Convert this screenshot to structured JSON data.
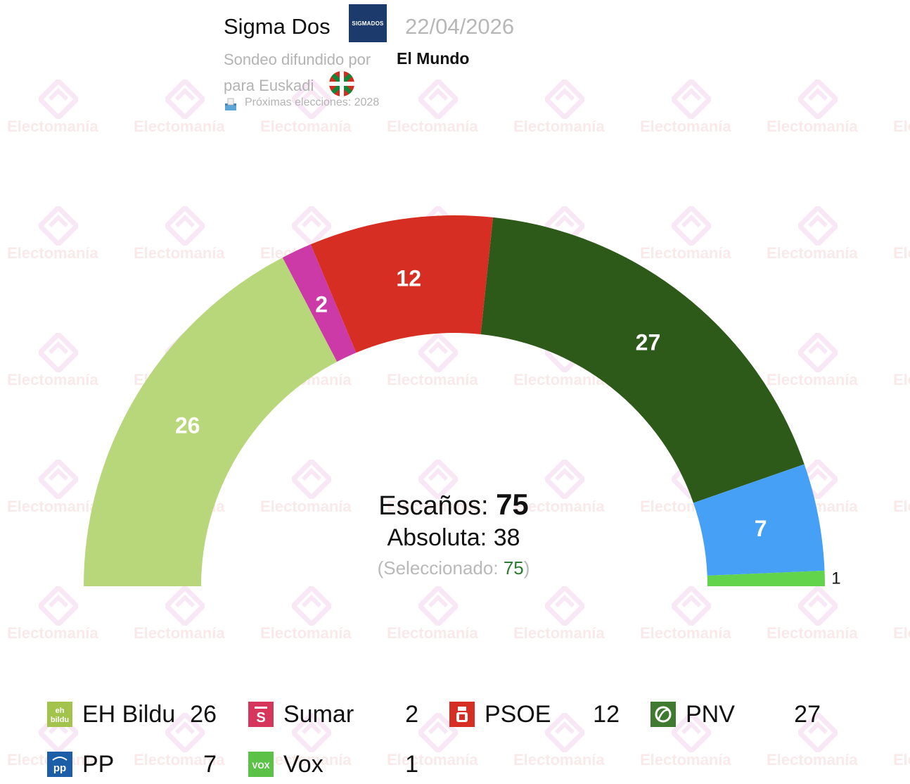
{
  "header": {
    "pollster": "Sigma Dos",
    "pollster_logo_text": "SIGMADOS",
    "date": "22/04/2026",
    "disseminated_by": "Sondeo difundido por",
    "media": "El Mundo",
    "region": "para Euskadi",
    "next_elections": "Próximas elecciones: 2028"
  },
  "watermark": "Electomanía",
  "center": {
    "seats_label": "Escaños:",
    "seats_value": "75",
    "majority_label": "Absoluta:",
    "majority_value": "38",
    "selected_open": "(Seleccionado:",
    "selected_value": "75",
    "selected_close": ")"
  },
  "chart_data": {
    "type": "parliament-semicircle",
    "total_seats": 75,
    "majority": 38,
    "categories": [
      "EH Bildu",
      "Sumar",
      "PSOE",
      "PNV",
      "PP",
      "Vox"
    ],
    "values": [
      26,
      2,
      12,
      27,
      7,
      1
    ],
    "colors": [
      "#b8d67a",
      "#cc3aa8",
      "#d62e22",
      "#2d5a19",
      "#45a0f6",
      "#61d44c"
    ]
  },
  "legend": [
    {
      "name": "EH Bildu",
      "value": "26",
      "icon": "eh-bildu-logo-icon",
      "icon_text": "eh bildu",
      "color": "#a3c44c"
    },
    {
      "name": "Sumar",
      "value": "2",
      "icon": "sumar-logo-icon",
      "icon_text": "S",
      "color": "#d6365c"
    },
    {
      "name": "PSOE",
      "value": "12",
      "icon": "psoe-logo-icon",
      "icon_text": "",
      "color": "#d62e22"
    },
    {
      "name": "PNV",
      "value": "27",
      "icon": "pnv-logo-icon",
      "icon_text": "",
      "color": "#3f7a30"
    },
    {
      "name": "PP",
      "value": "7",
      "icon": "pp-logo-icon",
      "icon_text": "pp",
      "color": "#1d5ea8"
    },
    {
      "name": "Vox",
      "value": "1",
      "icon": "vox-logo-icon",
      "icon_text": "VOX",
      "color": "#5cc247"
    }
  ]
}
